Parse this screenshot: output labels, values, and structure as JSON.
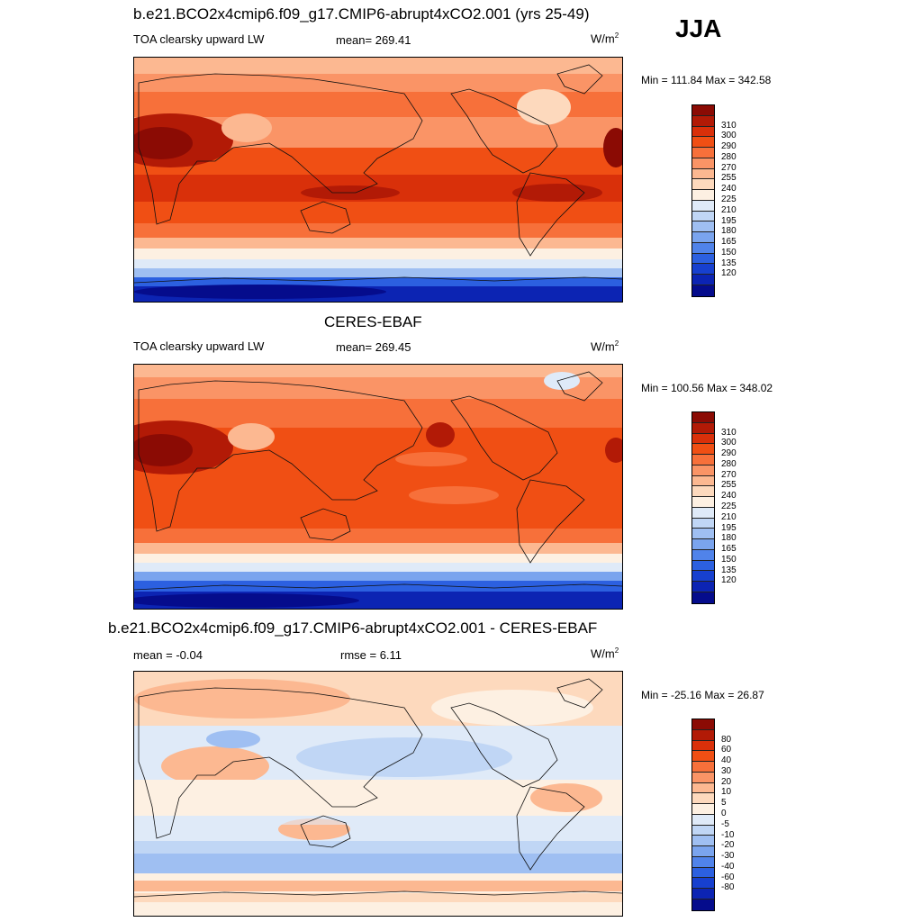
{
  "season": "JJA",
  "panels": [
    {
      "id": "model",
      "title": "b.e21.BCO2x4cmip6.f09_g17.CMIP6-abrupt4xCO2.001 (yrs 25-49)",
      "variable": "TOA clearsky upward LW",
      "stat": "mean= 269.41",
      "units": "W/m",
      "units_sup": "2",
      "minmax": "Min = 111.84 Max = 342.58",
      "colorbar": {
        "colors": [
          "#8b0b04",
          "#b21a06",
          "#d9300a",
          "#f04f14",
          "#f7703a",
          "#fa9466",
          "#fcb891",
          "#fdd9bd",
          "#fdf0e2",
          "#dfeaf8",
          "#c0d6f5",
          "#9fbff2",
          "#7aa4ee",
          "#5083ea",
          "#2c60e0",
          "#1740cf",
          "#0c24b3",
          "#050c8c"
        ],
        "labels": [
          "310",
          "300",
          "290",
          "280",
          "270",
          "255",
          "240",
          "225",
          "210",
          "195",
          "180",
          "165",
          "150",
          "135",
          "120"
        ]
      }
    },
    {
      "id": "obs",
      "title": "CERES-EBAF",
      "variable": "TOA clearsky upward LW",
      "stat": "mean= 269.45",
      "units": "W/m",
      "units_sup": "2",
      "minmax": "Min = 100.56 Max = 348.02",
      "colorbar": {
        "colors": [
          "#8b0b04",
          "#b21a06",
          "#d9300a",
          "#f04f14",
          "#f7703a",
          "#fa9466",
          "#fcb891",
          "#fdd9bd",
          "#fdf0e2",
          "#dfeaf8",
          "#c0d6f5",
          "#9fbff2",
          "#7aa4ee",
          "#5083ea",
          "#2c60e0",
          "#1740cf",
          "#0c24b3",
          "#050c8c"
        ],
        "labels": [
          "310",
          "300",
          "290",
          "280",
          "270",
          "255",
          "240",
          "225",
          "210",
          "195",
          "180",
          "165",
          "150",
          "135",
          "120"
        ]
      }
    },
    {
      "id": "diff",
      "title": "b.e21.BCO2x4cmip6.f09_g17.CMIP6-abrupt4xCO2.001 - CERES-EBAF",
      "variable": "mean =  -0.04",
      "stat": "rmse =   6.11",
      "units": "W/m",
      "units_sup": "2",
      "minmax": "Min = -25.16 Max =  26.87",
      "colorbar": {
        "colors": [
          "#8b0b04",
          "#b21a06",
          "#d9300a",
          "#f04f14",
          "#f7703a",
          "#fa9466",
          "#fcb891",
          "#fdd9bd",
          "#fdf0e2",
          "#dfeaf8",
          "#c0d6f5",
          "#9fbff2",
          "#7aa4ee",
          "#5083ea",
          "#2c60e0",
          "#1740cf",
          "#0c24b3",
          "#050c8c"
        ],
        "labels": [
          "80",
          "60",
          "40",
          "30",
          "20",
          "10",
          "5",
          "0",
          "-5",
          "-10",
          "-20",
          "-30",
          "-40",
          "-60",
          "-80"
        ]
      }
    }
  ]
}
